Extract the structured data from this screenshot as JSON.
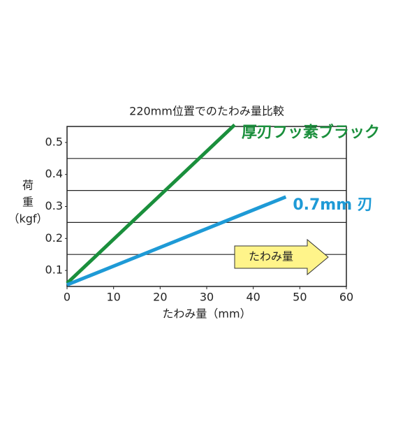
{
  "chart_data": {
    "type": "line",
    "title": "220mm位置でのたわみ量比較",
    "x_label": "たわみ量（mm）",
    "y_label": [
      "荷",
      "重",
      "（kgf）"
    ],
    "xlim": [
      0,
      60
    ],
    "xticks": [
      0,
      10,
      20,
      30,
      40,
      50,
      60
    ],
    "ylim": [
      0.05,
      0.55
    ],
    "yticks": [
      0.1,
      0.2,
      0.3,
      0.4,
      0.5
    ],
    "gridlines": [
      0.15,
      0.25,
      0.35,
      0.45
    ],
    "series": [
      {
        "name": "厚刃フッ素ブラック",
        "color": "#1a8f3c",
        "x": [
          0,
          36
        ],
        "values": [
          0.06,
          0.555
        ]
      },
      {
        "name": "0.7mm 刃",
        "color": "#1e9ad6",
        "x": [
          0,
          47
        ],
        "values": [
          0.055,
          0.33
        ]
      }
    ],
    "annotation": "たわみ量"
  }
}
